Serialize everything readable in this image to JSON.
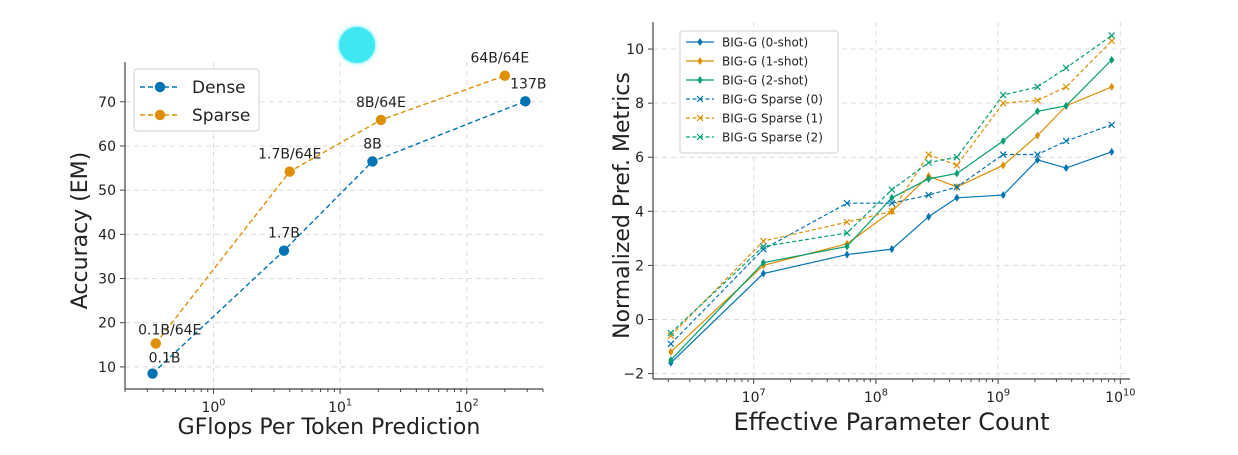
{
  "colors": {
    "blue": "#0173b2",
    "orange": "#de8f05",
    "green": "#029e73",
    "grid": "#dcdcdc",
    "axis": "#444444",
    "cursor": "#3ee8f2"
  },
  "chart_data": [
    {
      "type": "line",
      "xscale": "log",
      "xlabel": "GFlops Per Token Prediction",
      "ylabel": "Accuracy (EM)",
      "xlim": [
        0.2,
        400
      ],
      "ylim": [
        5,
        79
      ],
      "xticks": [
        1,
        10,
        100
      ],
      "xtick_labels": [
        {
          "base": "10",
          "exp": "0"
        },
        {
          "base": "10",
          "exp": "1"
        },
        {
          "base": "10",
          "exp": "2"
        }
      ],
      "yticks": [
        10,
        20,
        30,
        40,
        50,
        60,
        70
      ],
      "ytick_labels": [
        "10",
        "20",
        "30",
        "40",
        "50",
        "60",
        "70"
      ],
      "grid": true,
      "legend": "top-left",
      "series": [
        {
          "name": "Dense",
          "color": "#0173b2",
          "style": "dashed",
          "marker": "circle",
          "points": [
            {
              "x": 0.33,
              "y": 8.5,
              "label": "0.1B"
            },
            {
              "x": 3.6,
              "y": 36.3,
              "label": "1.7B"
            },
            {
              "x": 18,
              "y": 56.5,
              "label": "8B"
            },
            {
              "x": 290,
              "y": 70.1,
              "label": "137B"
            }
          ]
        },
        {
          "name": "Sparse",
          "color": "#de8f05",
          "style": "dashed",
          "marker": "circle",
          "points": [
            {
              "x": 0.35,
              "y": 15.3,
              "label": "0.1B/64E"
            },
            {
              "x": 4.0,
              "y": 54.2,
              "label": "1.7B/64E"
            },
            {
              "x": 21,
              "y": 65.9,
              "label": "8B/64E"
            },
            {
              "x": 200,
              "y": 75.9,
              "label": "64B/64E"
            }
          ]
        }
      ]
    },
    {
      "type": "line",
      "xscale": "log",
      "xlabel": "Effective Parameter Count",
      "ylabel": "Normalized Pref. Metrics",
      "xlim": [
        1500000,
        12000000000
      ],
      "ylim": [
        -2.2,
        11.0
      ],
      "xticks": [
        10000000,
        100000000,
        1000000000,
        10000000000
      ],
      "xtick_labels": [
        {
          "base": "10",
          "exp": "7"
        },
        {
          "base": "10",
          "exp": "8"
        },
        {
          "base": "10",
          "exp": "9"
        },
        {
          "base": "10",
          "exp": "10"
        }
      ],
      "yticks": [
        -2,
        0,
        2,
        4,
        6,
        8,
        10
      ],
      "ytick_labels": [
        "−2",
        "0",
        "2",
        "4",
        "6",
        "8",
        "10"
      ],
      "grid": true,
      "legend": "top-left",
      "x": [
        2100000,
        12000000,
        58000000,
        135000000,
        270000000,
        460000000,
        1100000000,
        2100000000,
        3600000000,
        8500000000
      ],
      "series": [
        {
          "name": "BIG-G (0-shot)",
          "color": "#0173b2",
          "style": "solid",
          "marker": "diamond",
          "values": [
            -1.6,
            1.7,
            2.4,
            2.6,
            3.8,
            4.5,
            4.6,
            5.9,
            5.6,
            6.2
          ]
        },
        {
          "name": "BIG-G (1-shot)",
          "color": "#de8f05",
          "style": "solid",
          "marker": "diamond",
          "values": [
            -1.2,
            2.0,
            2.8,
            4.0,
            5.3,
            4.9,
            5.7,
            6.8,
            7.9,
            8.6
          ]
        },
        {
          "name": "BIG-G (2-shot)",
          "color": "#029e73",
          "style": "solid",
          "marker": "diamond",
          "values": [
            -1.5,
            2.1,
            2.7,
            4.5,
            5.2,
            5.4,
            6.6,
            7.7,
            7.9,
            9.6
          ]
        },
        {
          "name": "BIG-G Sparse (0)",
          "color": "#0173b2",
          "style": "dashed",
          "marker": "x",
          "values": [
            -0.9,
            2.6,
            4.3,
            4.3,
            4.6,
            4.9,
            6.1,
            6.1,
            6.6,
            7.2
          ]
        },
        {
          "name": "BIG-G Sparse (1)",
          "color": "#de8f05",
          "style": "dashed",
          "marker": "x",
          "values": [
            -0.6,
            2.9,
            3.6,
            4.0,
            6.1,
            5.7,
            8.0,
            8.1,
            8.6,
            10.3
          ]
        },
        {
          "name": "BIG-G Sparse (2)",
          "color": "#029e73",
          "style": "dashed",
          "marker": "x",
          "values": [
            -0.5,
            2.7,
            3.2,
            4.8,
            5.8,
            6.0,
            8.3,
            8.6,
            9.3,
            10.5
          ]
        }
      ]
    }
  ]
}
